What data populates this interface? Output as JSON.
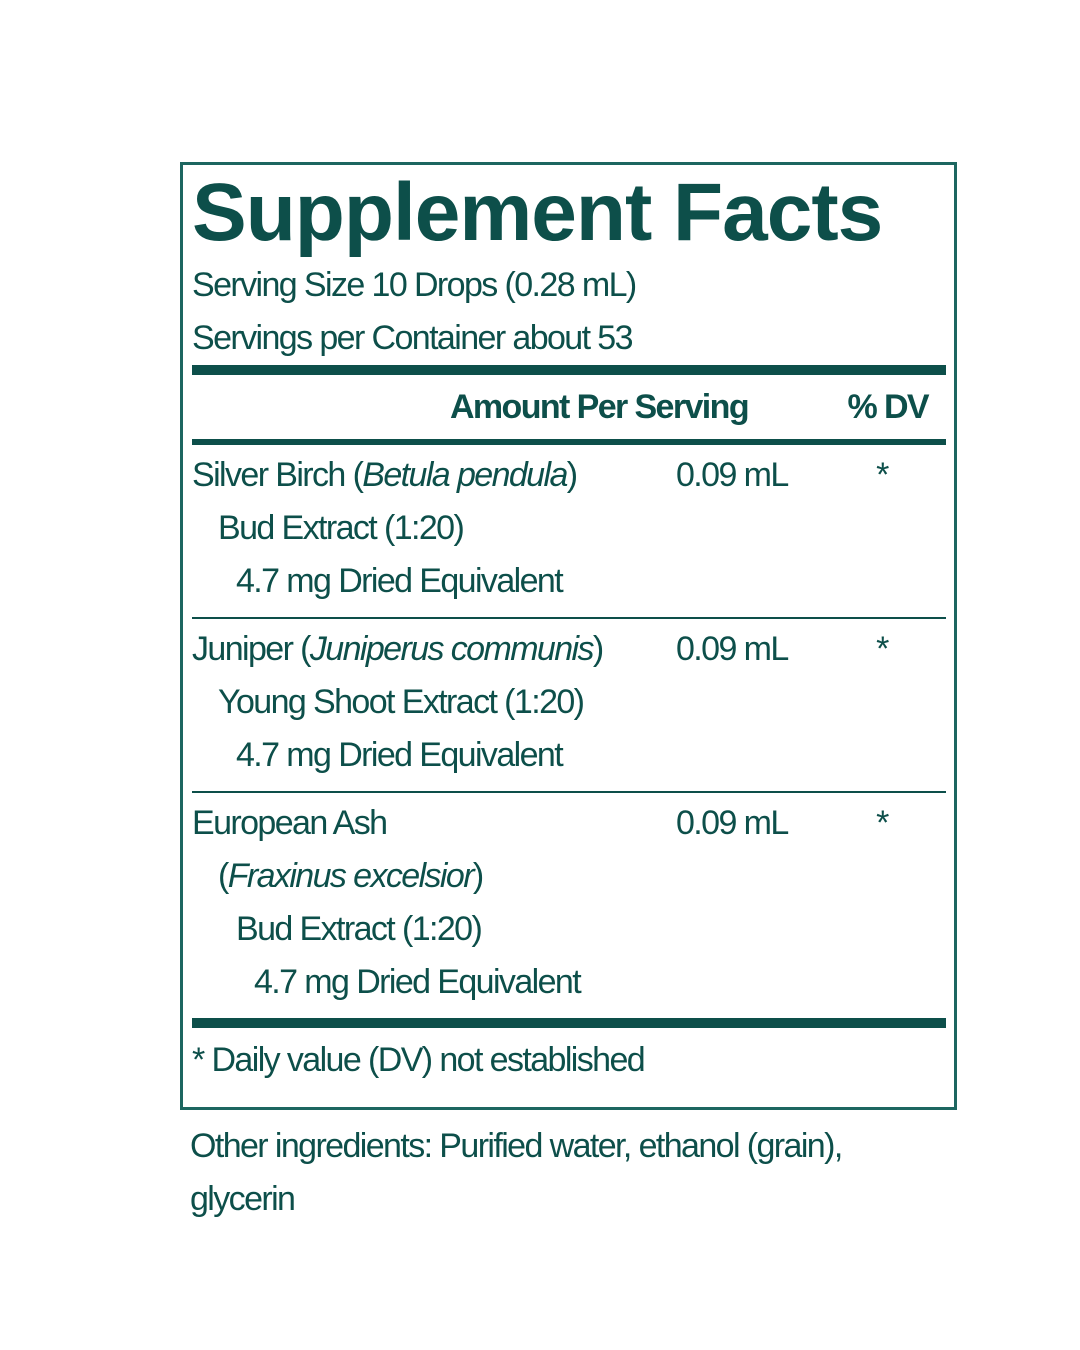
{
  "label": {
    "title": "Supplement Facts",
    "serving_size": "Serving Size 10 Drops (0.28 mL)",
    "servings_per_container": "Servings per Container about 53",
    "header": {
      "amount": "Amount Per Serving",
      "dv": "% DV"
    },
    "rows": [
      {
        "lines": [
          [
            {
              "text": "Silver Birch ("
            },
            {
              "text": "Betula pendula",
              "italic": true
            },
            {
              "text": ")"
            }
          ],
          [
            {
              "text": "Bud Extract (1:20)"
            }
          ],
          [
            {
              "text": "4.7 mg Dried Equivalent"
            }
          ]
        ],
        "amount": "0.09 mL",
        "dv": "*"
      },
      {
        "lines": [
          [
            {
              "text": "Juniper ("
            },
            {
              "text": "Juniperus communis",
              "italic": true
            },
            {
              "text": ")"
            }
          ],
          [
            {
              "text": "Young Shoot Extract (1:20)"
            }
          ],
          [
            {
              "text": "4.7 mg Dried Equivalent"
            }
          ]
        ],
        "amount": "0.09 mL",
        "dv": "*"
      },
      {
        "lines": [
          [
            {
              "text": "European Ash"
            }
          ],
          [
            {
              "text": "("
            },
            {
              "text": "Fraxinus excelsior",
              "italic": true
            },
            {
              "text": ")"
            }
          ],
          [
            {
              "text": "Bud Extract (1:20)"
            }
          ],
          [
            {
              "text": "4.7 mg Dried Equivalent"
            }
          ]
        ],
        "amount": "0.09 mL",
        "dv": "*"
      }
    ],
    "footnote": "* Daily value (DV) not established",
    "other_ingredients": "Other ingredients: Purified water, ethanol (grain), glycerin"
  }
}
